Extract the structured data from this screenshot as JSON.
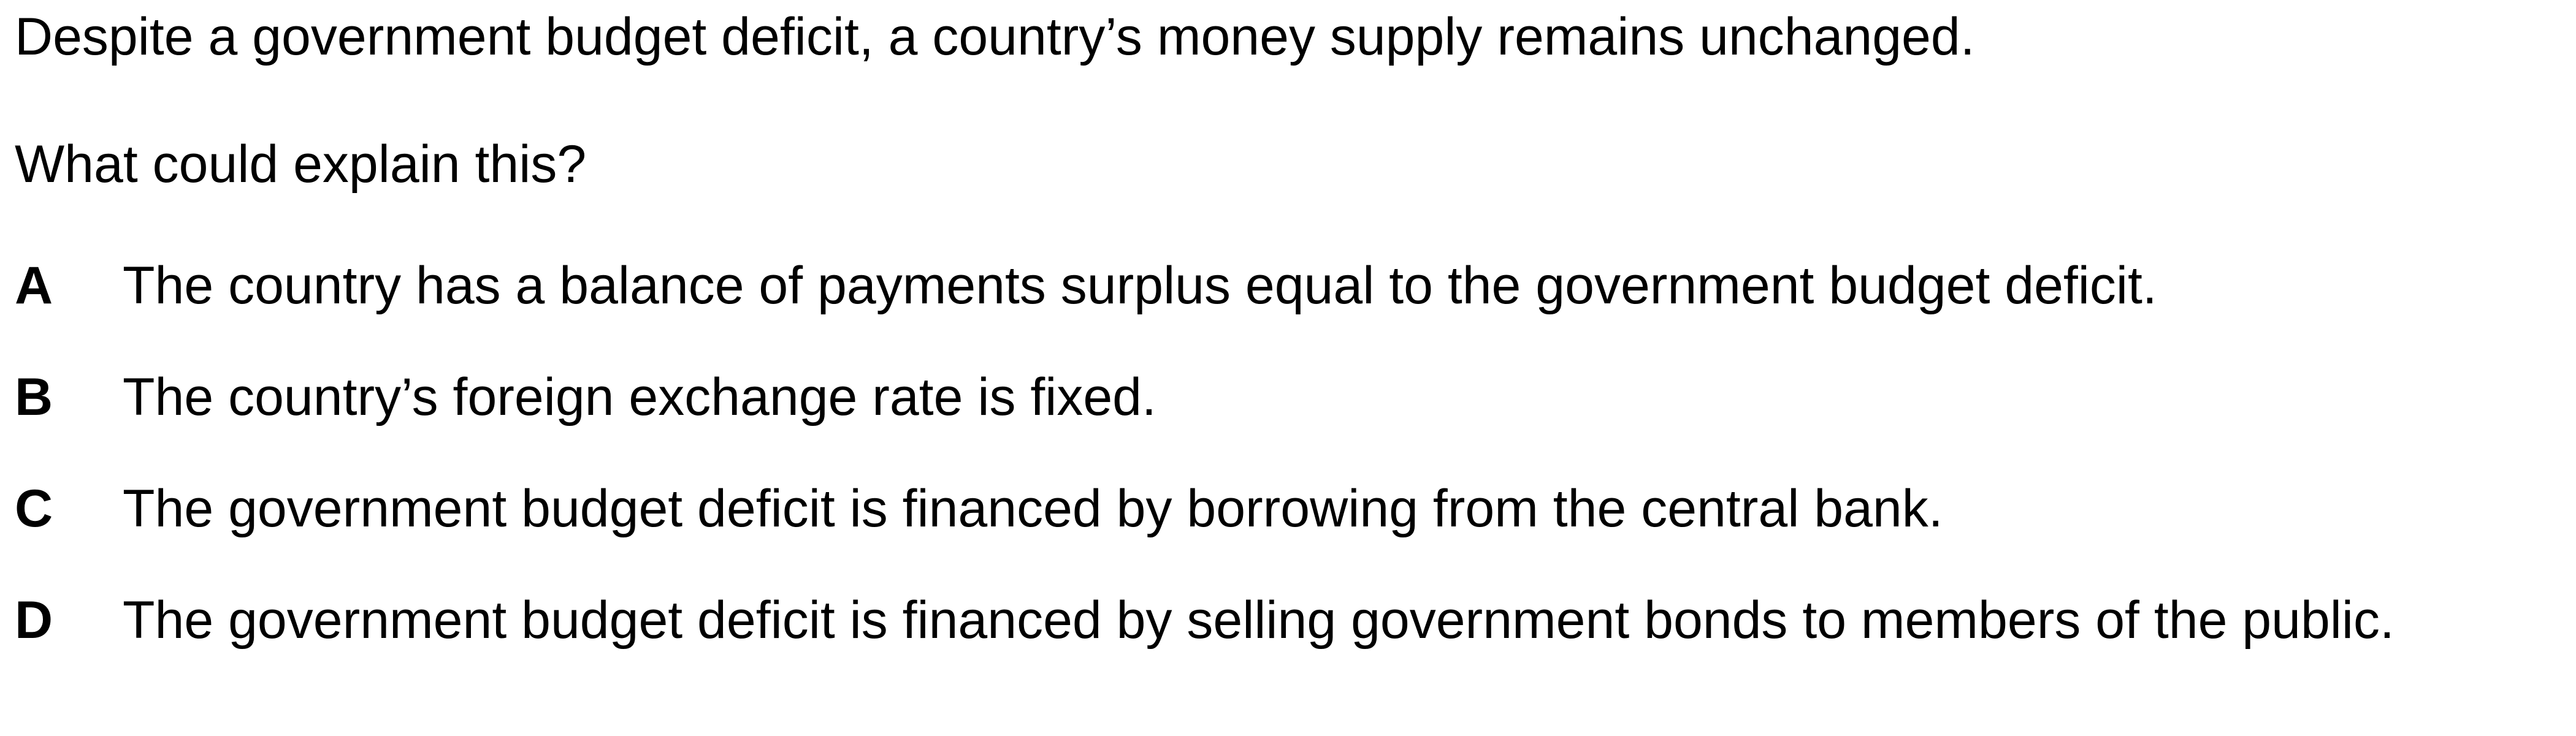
{
  "question": {
    "stem": "Despite a government budget deficit, a country’s money supply remains unchanged.",
    "prompt": "What could explain this?"
  },
  "options": [
    {
      "letter": "A",
      "text": "The country has a balance of payments surplus equal to the government budget deficit."
    },
    {
      "letter": "B",
      "text": "The country’s foreign exchange rate is fixed."
    },
    {
      "letter": "C",
      "text": "The government budget deficit is financed by borrowing from the central bank."
    },
    {
      "letter": "D",
      "text": "The government budget deficit is financed by selling government bonds to members of the public."
    }
  ]
}
